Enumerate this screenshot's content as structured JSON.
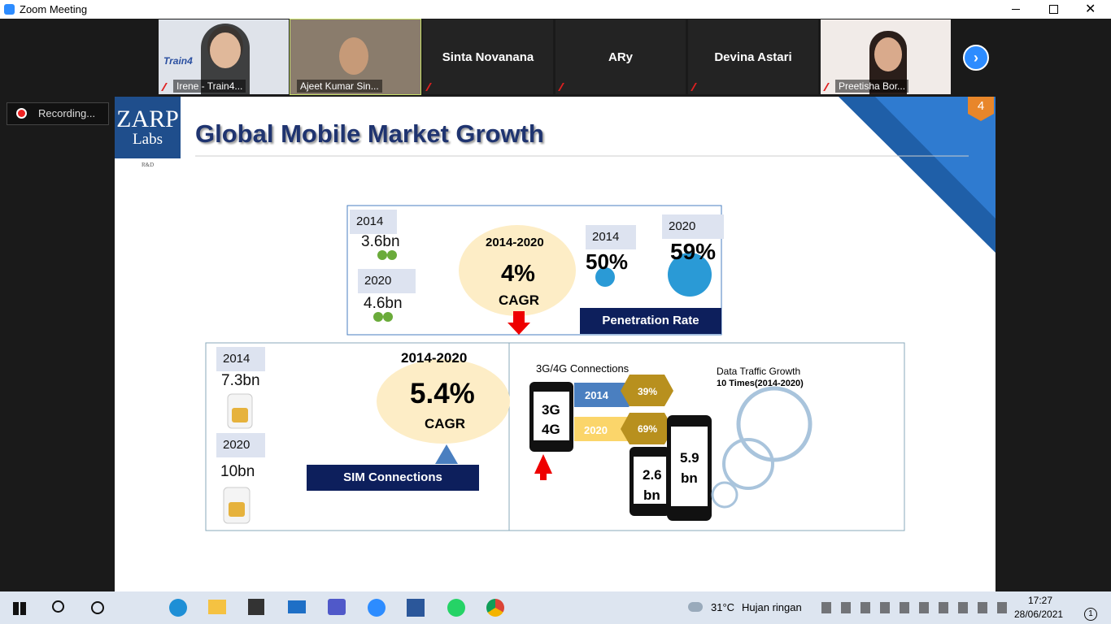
{
  "window": {
    "title": "Zoom Meeting"
  },
  "participants": [
    {
      "name": "Irene - Train4...",
      "logo": "Train4"
    },
    {
      "name": "Ajeet Kumar Sin..."
    },
    {
      "name": "Sinta Novanana"
    },
    {
      "name": "ARy"
    },
    {
      "name": "Devina Astari"
    },
    {
      "name": "Preetisha Bor..."
    }
  ],
  "recording": "Recording...",
  "slide": {
    "logo": {
      "line1": "ZARP",
      "line2": "Labs",
      "line3": "R&D"
    },
    "title": "Global Mobile Market Growth",
    "page": "4",
    "users": {
      "year1": "2014",
      "value1": "3.6bn",
      "year2": "2020",
      "value2": "4.6bn",
      "period": "2014-2020",
      "cagr": "4%",
      "cagr_label": "CAGR"
    },
    "penetration": {
      "year1": "2014",
      "value1": "50%",
      "year2": "2020",
      "value2": "59%",
      "label": "Penetration Rate"
    },
    "sim": {
      "year1": "2014",
      "value1": "7.3bn",
      "year2": "2020",
      "value2": "10bn",
      "period": "2014-2020",
      "cagr": "5.4%",
      "cagr_label": "CAGR",
      "label": "SIM Connections"
    },
    "connections": {
      "title": "3G/4G Connections",
      "year1": "2014",
      "value1": "39%",
      "year2": "2020",
      "value2": "69%",
      "phone_line1": "3G",
      "phone_line2": "4G",
      "small1": "2.6",
      "small2": "bn",
      "big1": "5.9",
      "big2": "bn"
    },
    "traffic": {
      "title": "Data Traffic Growth",
      "subtitle": "10 Times(2014-2020)"
    }
  },
  "taskbar": {
    "temperature": "31°C",
    "weather": "Hujan ringan",
    "time": "17:27",
    "date": "28/06/2021",
    "notifications": "1"
  }
}
